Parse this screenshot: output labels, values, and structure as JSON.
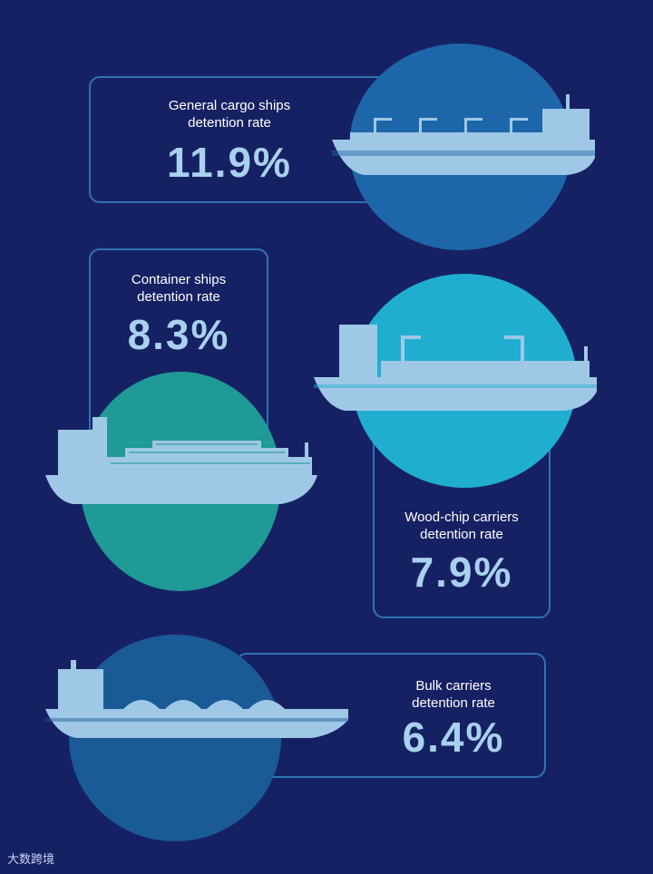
{
  "infographic": {
    "general_cargo": {
      "label": "General cargo ships\ndetention rate",
      "value": "11.9%"
    },
    "container": {
      "label": "Container ships\ndetention rate",
      "value": "8.3%"
    },
    "wood_chip": {
      "label": "Wood-chip carriers\ndetention rate",
      "value": "7.9%"
    },
    "bulk": {
      "label": "Bulk carriers\ndetention rate",
      "value": "6.4%"
    }
  },
  "watermark": {
    "text": "大数跨境"
  },
  "colors": {
    "background": "#162163",
    "card_border": "#2f73b5",
    "circle_general": "#1e66aa",
    "circle_container": "#1f9a96",
    "circle_wood_chip": "#1faed0",
    "circle_bulk": "#1a5a97",
    "ship_fill": "#9ec8e6",
    "value_text": "#a8d1ef"
  }
}
